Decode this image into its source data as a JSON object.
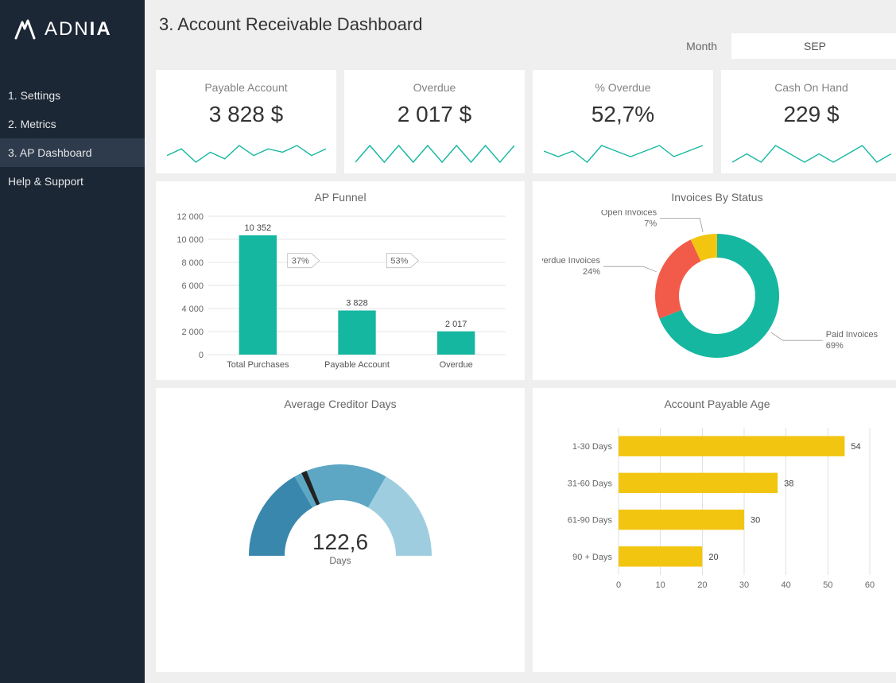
{
  "brand": {
    "name_light": "ADN",
    "name_bold": "IA"
  },
  "sidebar": {
    "items": [
      {
        "label": "1. Settings",
        "active": false
      },
      {
        "label": "2. Metrics",
        "active": false
      },
      {
        "label": "3. AP Dashboard",
        "active": true
      },
      {
        "label": "Help & Support",
        "active": false
      }
    ]
  },
  "header": {
    "title": "3. Account Receivable Dashboard",
    "month_label": "Month",
    "month_value": "SEP"
  },
  "colors": {
    "teal": "#16b7a0",
    "red": "#f25b4a",
    "yellow": "#f2c511",
    "blue1": "#3a87ad",
    "blue2": "#5da7c5",
    "blue3": "#9fcde0",
    "grid": "#cccccc",
    "tick": "#888888",
    "spark": "#16b7a0"
  },
  "kpis": [
    {
      "title": "Payable Account",
      "value": "3 828 $",
      "spark": [
        22,
        24,
        20,
        23,
        21,
        25,
        22,
        24,
        23,
        25,
        22,
        24
      ]
    },
    {
      "title": "Overdue",
      "value": "2 017 $",
      "spark": [
        14,
        15,
        14,
        15,
        14,
        15,
        14,
        15,
        14,
        15,
        14,
        15
      ]
    },
    {
      "title": "% Overdue",
      "value": "52,7%",
      "spark": [
        20,
        19,
        20,
        18,
        21,
        20,
        19,
        20,
        21,
        19,
        20,
        21
      ]
    },
    {
      "title": "Cash On Hand",
      "value": "229 $",
      "spark": [
        17,
        18,
        17,
        19,
        18,
        17,
        18,
        17,
        18,
        19,
        17,
        18
      ]
    }
  ],
  "funnel": {
    "title": "AP Funnel",
    "ylim": [
      0,
      12000
    ],
    "ytick_step": 2000,
    "bar_color": "#16b7a0",
    "categories": [
      "Total Purchases",
      "Payable Account",
      "Overdue"
    ],
    "values": [
      10352,
      3828,
      2017
    ],
    "value_labels": [
      "10 352",
      "3 828",
      "2 017"
    ],
    "drop_labels": [
      "37%",
      "53%"
    ]
  },
  "donut": {
    "title": "Invoices By Status",
    "slices": [
      {
        "label": "Paid Invoices",
        "pct": 69,
        "color": "#16b7a0"
      },
      {
        "label": "Overdue Invoices",
        "pct": 24,
        "color": "#f25b4a"
      },
      {
        "label": "Open Invoices",
        "pct": 7,
        "color": "#f2c511"
      }
    ]
  },
  "gauge": {
    "title": "Average Creditor Days",
    "value_text": "122,6",
    "unit": "Days",
    "fraction": 0.37
  },
  "age": {
    "title": "Account Payable Age",
    "xlim": [
      0,
      60
    ],
    "xtick_step": 10,
    "bar_color": "#f2c511",
    "categories": [
      "1-30 Days",
      "31-60 Days",
      "61-90 Days",
      "90 + Days"
    ],
    "values": [
      54,
      38,
      30,
      20
    ]
  }
}
